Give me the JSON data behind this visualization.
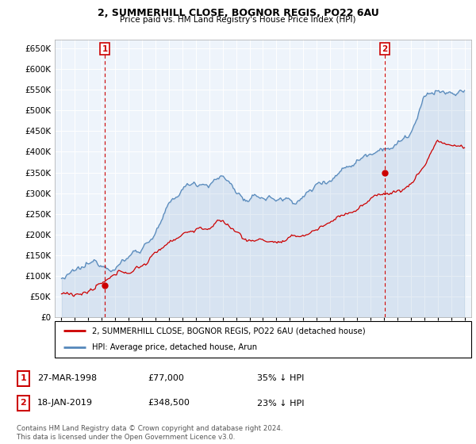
{
  "title1": "2, SUMMERHILL CLOSE, BOGNOR REGIS, PO22 6AU",
  "title2": "Price paid vs. HM Land Registry's House Price Index (HPI)",
  "legend_label_red": "2, SUMMERHILL CLOSE, BOGNOR REGIS, PO22 6AU (detached house)",
  "legend_label_blue": "HPI: Average price, detached house, Arun",
  "ann1": {
    "num": "1",
    "x": 1998.23,
    "price": 77000,
    "label": "27-MAR-1998",
    "amount": "£77,000",
    "pct": "35% ↓ HPI"
  },
  "ann2": {
    "num": "2",
    "x": 2019.05,
    "price": 348500,
    "label": "18-JAN-2019",
    "amount": "£348,500",
    "pct": "23% ↓ HPI"
  },
  "copyright": "Contains HM Land Registry data © Crown copyright and database right 2024.\nThis data is licensed under the Open Government Licence v3.0.",
  "ylim": [
    0,
    670000
  ],
  "xlim": [
    1994.5,
    2025.5
  ],
  "red_color": "#cc0000",
  "blue_color": "#5588bb",
  "blue_fill": "#ddeeff",
  "chart_bg": "#eef4fb"
}
